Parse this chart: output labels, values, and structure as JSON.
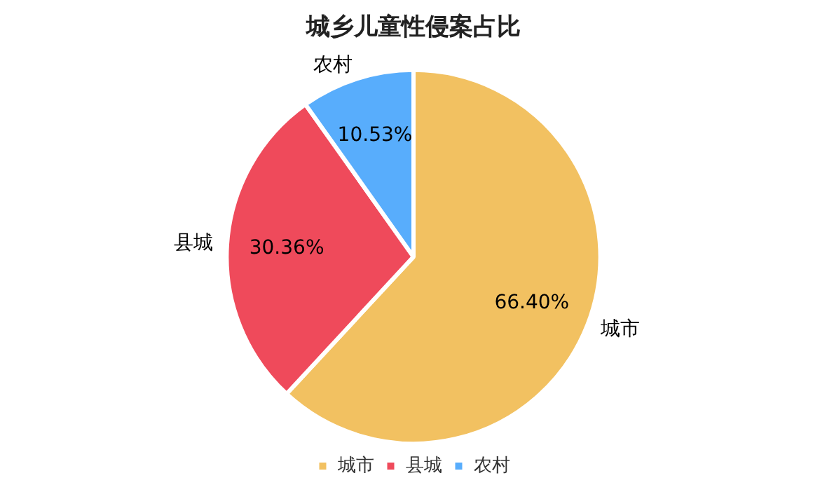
{
  "chart_data": {
    "type": "pie",
    "title": "城乡儿童性侵案占比",
    "categories": [
      "城市",
      "县城",
      "农村"
    ],
    "values": [
      66.4,
      30.36,
      10.53
    ],
    "value_labels": [
      "66.40%",
      "30.36%",
      "10.53%"
    ],
    "colors": [
      "#f2c161",
      "#ef4a5b",
      "#58adfc"
    ],
    "legend": "bottom"
  }
}
